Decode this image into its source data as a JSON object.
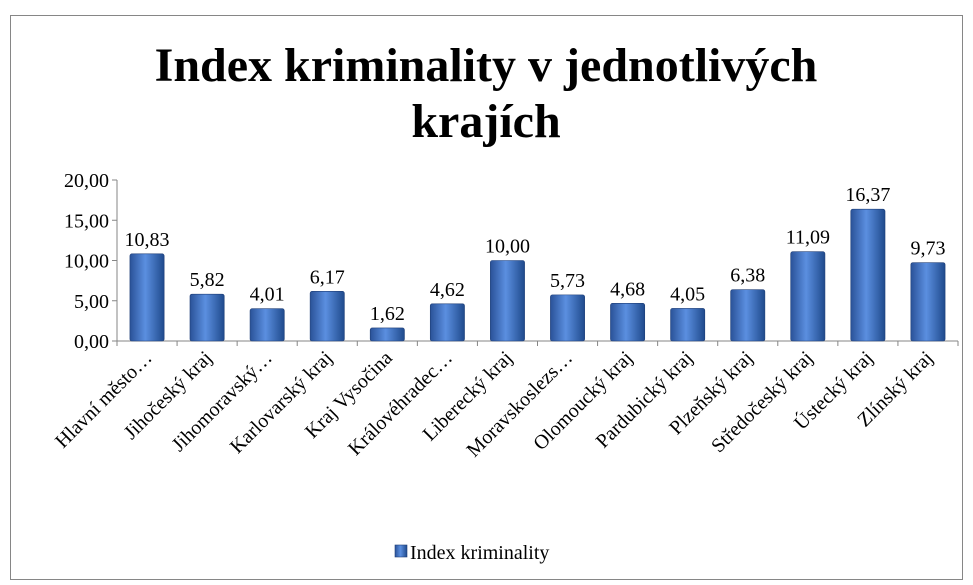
{
  "chart_data": {
    "type": "bar",
    "title": "Index kriminality v jednotlivých krajích",
    "categories": [
      "Hlavní město…",
      "Jihočeský kraj",
      "Jihomoravský…",
      "Karlovarský kraj",
      "Kraj Vysočina",
      "Královéhradec…",
      "Liberecký kraj",
      "Moravskoslezs…",
      "Olomoucký kraj",
      "Pardubický kraj",
      "Plzeňský kraj",
      "Středočeský kraj",
      "Ústecký kraj",
      "Zlínský kraj"
    ],
    "series": [
      {
        "name": "Index kriminality",
        "color": "#3a6fc0",
        "values": [
          10.83,
          5.82,
          4.01,
          6.17,
          1.62,
          4.62,
          10.0,
          5.73,
          4.68,
          4.05,
          6.38,
          11.09,
          16.37,
          9.73
        ],
        "value_labels": [
          "10,83",
          "5,82",
          "4,01",
          "6,17",
          "1,62",
          "4,62",
          "10,00",
          "5,73",
          "4,68",
          "4,05",
          "6,38",
          "11,09",
          "16,37",
          "9,73"
        ]
      }
    ],
    "ylim": [
      0,
      20
    ],
    "yticks": [
      {
        "value": 0,
        "label": "0,00"
      },
      {
        "value": 5,
        "label": "5,00"
      },
      {
        "value": 10,
        "label": "10,00"
      },
      {
        "value": 15,
        "label": "15,00"
      },
      {
        "value": 20,
        "label": "20,00"
      }
    ],
    "grid": false,
    "legend": "bottom"
  }
}
